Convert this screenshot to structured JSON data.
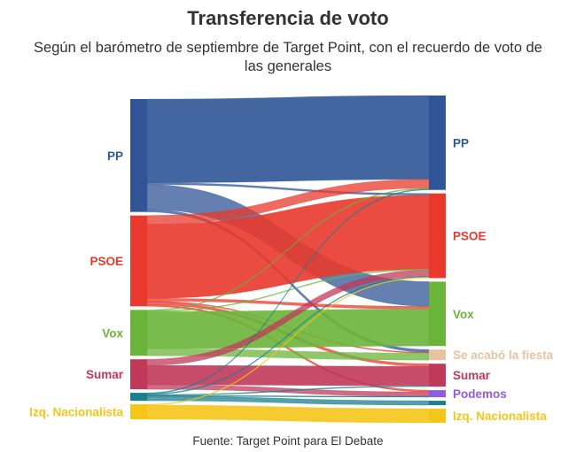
{
  "title": "Transferencia de voto",
  "subtitle": "Según el barómetro de septiembre de Target Point, con el recuerdo de voto de las generales",
  "source": "Fuente: Target Point para El Debate",
  "chart_data": {
    "type": "sankey",
    "source_nodes": [
      {
        "id": "PP",
        "label": "PP",
        "color": "#2f5597"
      },
      {
        "id": "PSOE",
        "label": "PSOE",
        "color": "#e8392c"
      },
      {
        "id": "Vox",
        "label": "Vox",
        "color": "#6bb43a"
      },
      {
        "id": "Sumar",
        "label": "Sumar",
        "color": "#c0395a"
      },
      {
        "id": "Podemos",
        "label": "",
        "color": "#1a7f8e"
      },
      {
        "id": "IzqN",
        "label": "Izq. Nacionalista",
        "color": "#f5c518"
      }
    ],
    "target_nodes": [
      {
        "id": "PP",
        "label": "PP",
        "color": "#2f5597"
      },
      {
        "id": "PSOE",
        "label": "PSOE",
        "color": "#e8392c"
      },
      {
        "id": "Vox",
        "label": "Vox",
        "color": "#6bb43a"
      },
      {
        "id": "SALF",
        "label": "Se acabó la fiesta",
        "color": "#e6c3a1"
      },
      {
        "id": "Sumar",
        "label": "Sumar",
        "color": "#c0395a"
      },
      {
        "id": "Podemos",
        "label": "Podemos",
        "color": "#8c5ce6"
      },
      {
        "id": "Otros",
        "label": "",
        "color": "#1a7f8e"
      },
      {
        "id": "IzqN",
        "label": "Izq. Nacionalista",
        "color": "#f5c518"
      }
    ],
    "flows": [
      {
        "from": "PP",
        "to": "PP",
        "value": 95
      },
      {
        "from": "PP",
        "to": "PSOE",
        "value": 2
      },
      {
        "from": "PP",
        "to": "Vox",
        "value": 28
      },
      {
        "from": "PP",
        "to": "SALF",
        "value": 3
      },
      {
        "from": "PSOE",
        "to": "PP",
        "value": 10
      },
      {
        "from": "PSOE",
        "to": "PSOE",
        "value": 84
      },
      {
        "from": "PSOE",
        "to": "Vox",
        "value": 3
      },
      {
        "from": "PSOE",
        "to": "SALF",
        "value": 1
      },
      {
        "from": "PSOE",
        "to": "Sumar",
        "value": 3
      },
      {
        "from": "PSOE",
        "to": "Podemos",
        "value": 2
      },
      {
        "from": "Vox",
        "to": "PP",
        "value": 1
      },
      {
        "from": "Vox",
        "to": "PSOE",
        "value": 1
      },
      {
        "from": "Vox",
        "to": "Vox",
        "value": 42
      },
      {
        "from": "Vox",
        "to": "SALF",
        "value": 8
      },
      {
        "from": "Sumar",
        "to": "PSOE",
        "value": 7
      },
      {
        "from": "Sumar",
        "to": "Sumar",
        "value": 22
      },
      {
        "from": "Sumar",
        "to": "Podemos",
        "value": 5
      },
      {
        "from": "Podemos",
        "to": "PP",
        "value": 1
      },
      {
        "from": "Podemos",
        "to": "PSOE",
        "value": 1
      },
      {
        "from": "Podemos",
        "to": "Sumar",
        "value": 1
      },
      {
        "from": "Podemos",
        "to": "Podemos",
        "value": 1
      },
      {
        "from": "Podemos",
        "to": "Otros",
        "value": 5
      },
      {
        "from": "IzqN",
        "to": "PSOE",
        "value": 1
      },
      {
        "from": "IzqN",
        "to": "IzqN",
        "value": 16
      }
    ]
  }
}
